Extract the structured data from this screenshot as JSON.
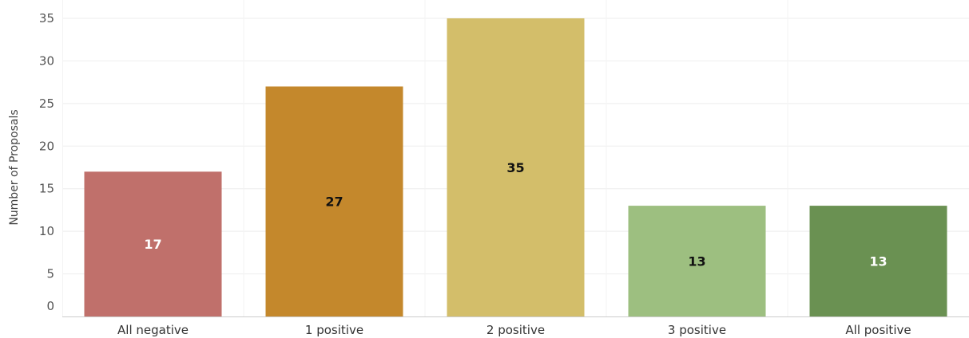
{
  "chart_data": {
    "type": "bar",
    "ylabel": "Number of Proposals",
    "xlabel": "",
    "ylim": [
      0,
      35
    ],
    "yticks": [
      0,
      5,
      10,
      15,
      20,
      25,
      30,
      35
    ],
    "grid": true,
    "categories": [
      "All negative",
      "1 positive",
      "2 positive",
      "3 positive",
      "All positive"
    ],
    "values": [
      17,
      27,
      35,
      13,
      13
    ],
    "colors": [
      "#c0706b",
      "#c4882c",
      "#d3be6a",
      "#9dbf80",
      "#6a9152"
    ],
    "label_colors": [
      "#ffffff",
      "#111111",
      "#111111",
      "#111111",
      "#ffffff"
    ]
  }
}
